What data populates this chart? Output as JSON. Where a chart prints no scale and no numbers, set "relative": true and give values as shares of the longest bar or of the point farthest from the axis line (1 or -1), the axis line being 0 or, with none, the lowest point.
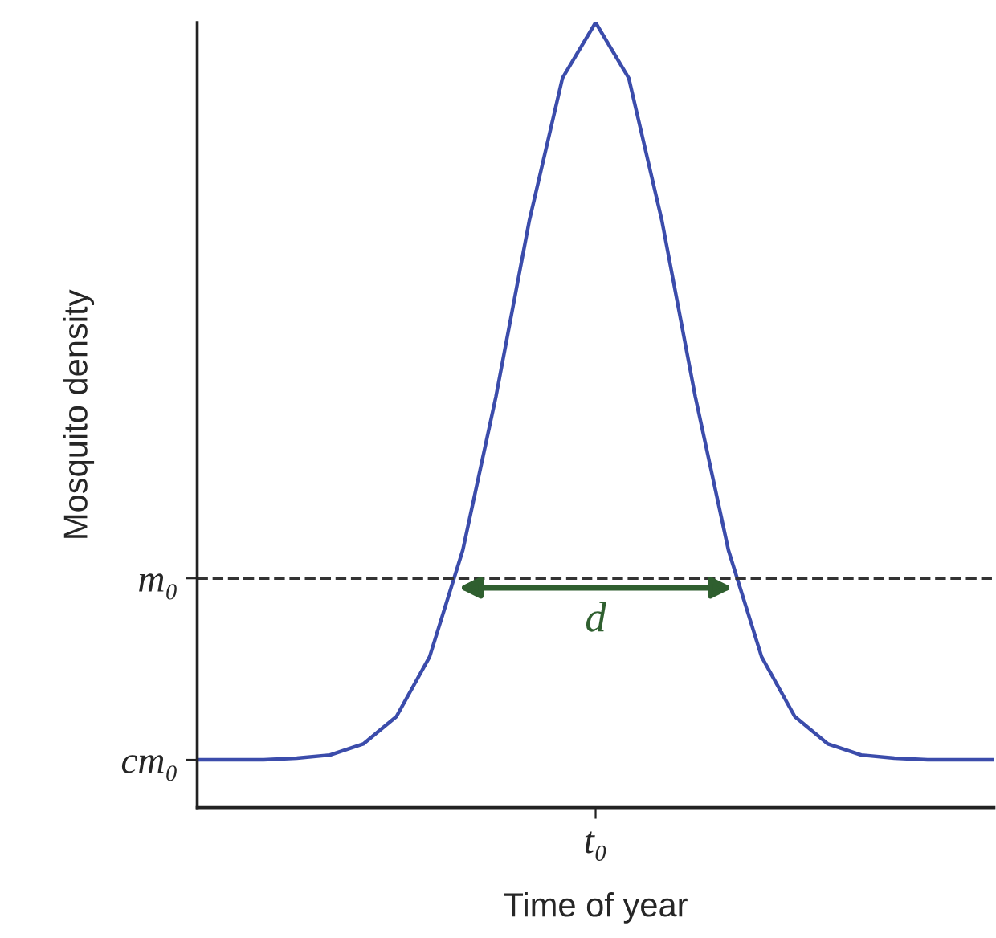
{
  "chart_data": {
    "type": "line",
    "xlabel": "Time of year",
    "ylabel": "Mosquito density",
    "relative": true,
    "categories": [
      null,
      null,
      null,
      null,
      null,
      null,
      null,
      null,
      null,
      null,
      null,
      null,
      null,
      null,
      null,
      null,
      null,
      null,
      null,
      null,
      null,
      null,
      null,
      null,
      null
    ],
    "series": [
      {
        "color": "#3b4cab",
        "values": [
          0.061,
          0.061,
          0.061,
          0.063,
          0.067,
          0.081,
          0.116,
          0.192,
          0.328,
          0.524,
          0.747,
          0.929,
          1.0,
          0.929,
          0.747,
          0.524,
          0.328,
          0.192,
          0.116,
          0.081,
          0.067,
          0.063,
          0.061,
          0.061,
          0.061
        ]
      }
    ],
    "ref_lines": [
      {
        "axis": "y",
        "value": 0.292,
        "label": "m₀",
        "color": "#333333",
        "line_style": "dashed"
      }
    ],
    "annotations": [
      "d",
      "t₀",
      "cm₀"
    ],
    "grid": false,
    "legend": false,
    "line_style": "solid"
  }
}
